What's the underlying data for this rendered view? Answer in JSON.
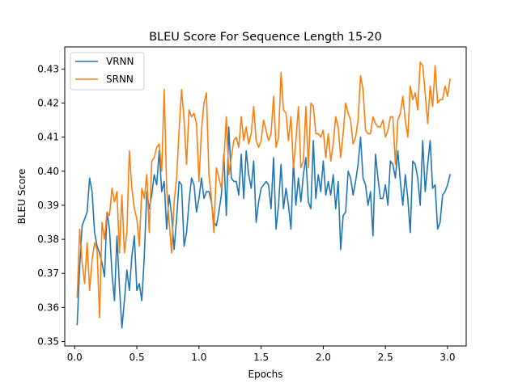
{
  "chart_data": {
    "type": "line",
    "title": "BLEU Score For Sequence Length 15-20",
    "xlabel": "Epochs",
    "ylabel": "BLEU Score",
    "xlim": [
      -0.08,
      3.15
    ],
    "ylim": [
      0.3487,
      0.4365
    ],
    "xticks": [
      0.0,
      0.5,
      1.0,
      1.5,
      2.0,
      2.5,
      3.0
    ],
    "xtick_labels": [
      "0.0",
      "0.5",
      "1.0",
      "1.5",
      "2.0",
      "2.5",
      "3.0"
    ],
    "yticks": [
      0.35,
      0.36,
      0.37,
      0.38,
      0.39,
      0.4,
      0.41,
      0.42,
      0.43
    ],
    "ytick_labels": [
      "0.35",
      "0.36",
      "0.37",
      "0.38",
      "0.39",
      "0.40",
      "0.41",
      "0.42",
      "0.43"
    ],
    "grid": false,
    "legend_position": "top-left",
    "series": [
      {
        "name": "VRNN",
        "color": "#1f77b4",
        "values": [
          [
            0.02,
            0.355
          ],
          [
            0.04,
            0.372
          ],
          [
            0.06,
            0.384
          ],
          [
            0.08,
            0.386
          ],
          [
            0.1,
            0.388
          ],
          [
            0.12,
            0.398
          ],
          [
            0.14,
            0.394
          ],
          [
            0.16,
            0.382
          ],
          [
            0.18,
            0.378
          ],
          [
            0.2,
            0.376
          ],
          [
            0.22,
            0.373
          ],
          [
            0.24,
            0.369
          ],
          [
            0.26,
            0.388
          ],
          [
            0.28,
            0.383
          ],
          [
            0.3,
            0.37
          ],
          [
            0.32,
            0.362
          ],
          [
            0.34,
            0.381
          ],
          [
            0.36,
            0.366
          ],
          [
            0.38,
            0.354
          ],
          [
            0.4,
            0.362
          ],
          [
            0.42,
            0.371
          ],
          [
            0.44,
            0.365
          ],
          [
            0.46,
            0.375
          ],
          [
            0.48,
            0.381
          ],
          [
            0.5,
            0.365
          ],
          [
            0.52,
            0.367
          ],
          [
            0.54,
            0.362
          ],
          [
            0.56,
            0.375
          ],
          [
            0.58,
            0.394
          ],
          [
            0.6,
            0.389
          ],
          [
            0.62,
            0.393
          ],
          [
            0.64,
            0.399
          ],
          [
            0.66,
            0.396
          ],
          [
            0.68,
            0.406
          ],
          [
            0.7,
            0.394
          ],
          [
            0.72,
            0.397
          ],
          [
            0.74,
            0.383
          ],
          [
            0.76,
            0.393
          ],
          [
            0.78,
            0.387
          ],
          [
            0.8,
            0.377
          ],
          [
            0.82,
            0.386
          ],
          [
            0.84,
            0.397
          ],
          [
            0.86,
            0.396
          ],
          [
            0.88,
            0.378
          ],
          [
            0.9,
            0.382
          ],
          [
            0.92,
            0.391
          ],
          [
            0.94,
            0.398
          ],
          [
            0.96,
            0.396
          ],
          [
            0.98,
            0.388
          ],
          [
            1.0,
            0.392
          ],
          [
            1.02,
            0.398
          ],
          [
            1.04,
            0.392
          ],
          [
            1.06,
            0.394
          ],
          [
            1.08,
            0.394
          ],
          [
            1.1,
            0.391
          ],
          [
            1.12,
            0.385
          ],
          [
            1.14,
            0.384
          ],
          [
            1.16,
            0.388
          ],
          [
            1.18,
            0.393
          ],
          [
            1.2,
            0.405
          ],
          [
            1.22,
            0.387
          ],
          [
            1.24,
            0.413
          ],
          [
            1.26,
            0.398
          ],
          [
            1.28,
            0.397
          ],
          [
            1.3,
            0.397
          ],
          [
            1.32,
            0.393
          ],
          [
            1.34,
            0.405
          ],
          [
            1.36,
            0.392
          ],
          [
            1.38,
            0.406
          ],
          [
            1.4,
            0.399
          ],
          [
            1.42,
            0.395
          ],
          [
            1.44,
            0.403
          ],
          [
            1.46,
            0.385
          ],
          [
            1.48,
            0.391
          ],
          [
            1.5,
            0.395
          ],
          [
            1.52,
            0.396
          ],
          [
            1.54,
            0.397
          ],
          [
            1.56,
            0.396
          ],
          [
            1.58,
            0.389
          ],
          [
            1.6,
            0.404
          ],
          [
            1.62,
            0.383
          ],
          [
            1.64,
            0.39
          ],
          [
            1.66,
            0.402
          ],
          [
            1.68,
            0.389
          ],
          [
            1.7,
            0.395
          ],
          [
            1.72,
            0.39
          ],
          [
            1.74,
            0.383
          ],
          [
            1.76,
            0.403
          ],
          [
            1.78,
            0.39
          ],
          [
            1.8,
            0.398
          ],
          [
            1.82,
            0.391
          ],
          [
            1.84,
            0.399
          ],
          [
            1.86,
            0.404
          ],
          [
            1.88,
            0.391
          ],
          [
            1.9,
            0.389
          ],
          [
            1.92,
            0.409
          ],
          [
            1.94,
            0.392
          ],
          [
            1.96,
            0.399
          ],
          [
            1.98,
            0.394
          ],
          [
            2.0,
            0.403
          ],
          [
            2.02,
            0.393
          ],
          [
            2.04,
            0.397
          ],
          [
            2.06,
            0.393
          ],
          [
            2.08,
            0.399
          ],
          [
            2.1,
            0.389
          ],
          [
            2.12,
            0.397
          ],
          [
            2.14,
            0.377
          ],
          [
            2.16,
            0.387
          ],
          [
            2.18,
            0.388
          ],
          [
            2.2,
            0.4
          ],
          [
            2.22,
            0.398
          ],
          [
            2.24,
            0.393
          ],
          [
            2.26,
            0.397
          ],
          [
            2.28,
            0.402
          ],
          [
            2.3,
            0.41
          ],
          [
            2.32,
            0.398
          ],
          [
            2.34,
            0.396
          ],
          [
            2.36,
            0.39
          ],
          [
            2.38,
            0.394
          ],
          [
            2.4,
            0.381
          ],
          [
            2.42,
            0.405
          ],
          [
            2.44,
            0.398
          ],
          [
            2.46,
            0.392
          ],
          [
            2.48,
            0.392
          ],
          [
            2.5,
            0.396
          ],
          [
            2.52,
            0.39
          ],
          [
            2.54,
            0.403
          ],
          [
            2.56,
            0.402
          ],
          [
            2.58,
            0.398
          ],
          [
            2.6,
            0.406
          ],
          [
            2.62,
            0.397
          ],
          [
            2.64,
            0.39
          ],
          [
            2.66,
            0.399
          ],
          [
            2.68,
            0.392
          ],
          [
            2.7,
            0.382
          ],
          [
            2.72,
            0.403
          ],
          [
            2.74,
            0.402
          ],
          [
            2.76,
            0.398
          ],
          [
            2.78,
            0.39
          ],
          [
            2.8,
            0.409
          ],
          [
            2.82,
            0.394
          ],
          [
            2.84,
            0.402
          ],
          [
            2.86,
            0.409
          ],
          [
            2.88,
            0.395
          ],
          [
            2.9,
            0.396
          ],
          [
            2.92,
            0.383
          ],
          [
            2.94,
            0.385
          ],
          [
            2.96,
            0.393
          ],
          [
            2.98,
            0.394
          ],
          [
            3.0,
            0.396
          ],
          [
            3.02,
            0.399
          ]
        ]
      },
      {
        "name": "SRNN",
        "color": "#ff7f0e",
        "values": [
          [
            0.02,
            0.363
          ],
          [
            0.04,
            0.383
          ],
          [
            0.06,
            0.373
          ],
          [
            0.08,
            0.367
          ],
          [
            0.1,
            0.379
          ],
          [
            0.12,
            0.365
          ],
          [
            0.14,
            0.374
          ],
          [
            0.16,
            0.379
          ],
          [
            0.18,
            0.377
          ],
          [
            0.2,
            0.357
          ],
          [
            0.22,
            0.385
          ],
          [
            0.24,
            0.38
          ],
          [
            0.26,
            0.388
          ],
          [
            0.28,
            0.387
          ],
          [
            0.3,
            0.395
          ],
          [
            0.32,
            0.391
          ],
          [
            0.34,
            0.394
          ],
          [
            0.36,
            0.376
          ],
          [
            0.38,
            0.393
          ],
          [
            0.4,
            0.376
          ],
          [
            0.42,
            0.382
          ],
          [
            0.44,
            0.406
          ],
          [
            0.46,
            0.395
          ],
          [
            0.48,
            0.389
          ],
          [
            0.5,
            0.386
          ],
          [
            0.52,
            0.378
          ],
          [
            0.54,
            0.395
          ],
          [
            0.56,
            0.392
          ],
          [
            0.58,
            0.399
          ],
          [
            0.6,
            0.382
          ],
          [
            0.62,
            0.403
          ],
          [
            0.64,
            0.404
          ],
          [
            0.66,
            0.407
          ],
          [
            0.68,
            0.408
          ],
          [
            0.7,
            0.4
          ],
          [
            0.72,
            0.424
          ],
          [
            0.74,
            0.395
          ],
          [
            0.76,
            0.385
          ],
          [
            0.78,
            0.376
          ],
          [
            0.8,
            0.391
          ],
          [
            0.82,
            0.398
          ],
          [
            0.84,
            0.412
          ],
          [
            0.86,
            0.424
          ],
          [
            0.88,
            0.415
          ],
          [
            0.9,
            0.402
          ],
          [
            0.92,
            0.418
          ],
          [
            0.94,
            0.416
          ],
          [
            0.96,
            0.417
          ],
          [
            0.98,
            0.414
          ],
          [
            1.0,
            0.397
          ],
          [
            1.02,
            0.412
          ],
          [
            1.04,
            0.42
          ],
          [
            1.06,
            0.423
          ],
          [
            1.08,
            0.399
          ],
          [
            1.1,
            0.392
          ],
          [
            1.12,
            0.382
          ],
          [
            1.14,
            0.401
          ],
          [
            1.16,
            0.398
          ],
          [
            1.18,
            0.395
          ],
          [
            1.2,
            0.403
          ],
          [
            1.22,
            0.416
          ],
          [
            1.24,
            0.399
          ],
          [
            1.26,
            0.404
          ],
          [
            1.28,
            0.409
          ],
          [
            1.3,
            0.41
          ],
          [
            1.32,
            0.407
          ],
          [
            1.34,
            0.416
          ],
          [
            1.36,
            0.409
          ],
          [
            1.38,
            0.413
          ],
          [
            1.4,
            0.408
          ],
          [
            1.42,
            0.411
          ],
          [
            1.44,
            0.419
          ],
          [
            1.46,
            0.409
          ],
          [
            1.48,
            0.407
          ],
          [
            1.5,
            0.409
          ],
          [
            1.52,
            0.415
          ],
          [
            1.54,
            0.412
          ],
          [
            1.56,
            0.409
          ],
          [
            1.58,
            0.411
          ],
          [
            1.6,
            0.422
          ],
          [
            1.62,
            0.407
          ],
          [
            1.64,
            0.41
          ],
          [
            1.66,
            0.429
          ],
          [
            1.68,
            0.418
          ],
          [
            1.7,
            0.417
          ],
          [
            1.72,
            0.409
          ],
          [
            1.74,
            0.416
          ],
          [
            1.76,
            0.401
          ],
          [
            1.78,
            0.409
          ],
          [
            1.8,
            0.419
          ],
          [
            1.82,
            0.401
          ],
          [
            1.84,
            0.403
          ],
          [
            1.86,
            0.419
          ],
          [
            1.88,
            0.401
          ],
          [
            1.9,
            0.42
          ],
          [
            1.92,
            0.419
          ],
          [
            1.94,
            0.411
          ],
          [
            1.96,
            0.411
          ],
          [
            1.98,
            0.41
          ],
          [
            2.0,
            0.412
          ],
          [
            2.02,
            0.404
          ],
          [
            2.04,
            0.411
          ],
          [
            2.06,
            0.403
          ],
          [
            2.08,
            0.408
          ],
          [
            2.1,
            0.416
          ],
          [
            2.12,
            0.413
          ],
          [
            2.14,
            0.404
          ],
          [
            2.16,
            0.411
          ],
          [
            2.18,
            0.42
          ],
          [
            2.2,
            0.417
          ],
          [
            2.22,
            0.415
          ],
          [
            2.24,
            0.408
          ],
          [
            2.26,
            0.41
          ],
          [
            2.28,
            0.415
          ],
          [
            2.3,
            0.428
          ],
          [
            2.32,
            0.424
          ],
          [
            2.34,
            0.412
          ],
          [
            2.36,
            0.411
          ],
          [
            2.38,
            0.411
          ],
          [
            2.4,
            0.416
          ],
          [
            2.42,
            0.414
          ],
          [
            2.44,
            0.413
          ],
          [
            2.46,
            0.413
          ],
          [
            2.48,
            0.415
          ],
          [
            2.5,
            0.41
          ],
          [
            2.52,
            0.412
          ],
          [
            2.54,
            0.416
          ],
          [
            2.56,
            0.416
          ],
          [
            2.58,
            0.402
          ],
          [
            2.6,
            0.415
          ],
          [
            2.62,
            0.417
          ],
          [
            2.64,
            0.422
          ],
          [
            2.66,
            0.415
          ],
          [
            2.68,
            0.41
          ],
          [
            2.7,
            0.425
          ],
          [
            2.72,
            0.421
          ],
          [
            2.74,
            0.423
          ],
          [
            2.76,
            0.418
          ],
          [
            2.78,
            0.432
          ],
          [
            2.8,
            0.431
          ],
          [
            2.82,
            0.423
          ],
          [
            2.84,
            0.414
          ],
          [
            2.86,
            0.425
          ],
          [
            2.88,
            0.419
          ],
          [
            2.9,
            0.431
          ],
          [
            2.92,
            0.42
          ],
          [
            2.94,
            0.421
          ],
          [
            2.96,
            0.421
          ],
          [
            2.98,
            0.425
          ],
          [
            3.0,
            0.422
          ],
          [
            3.02,
            0.427
          ]
        ]
      }
    ]
  }
}
